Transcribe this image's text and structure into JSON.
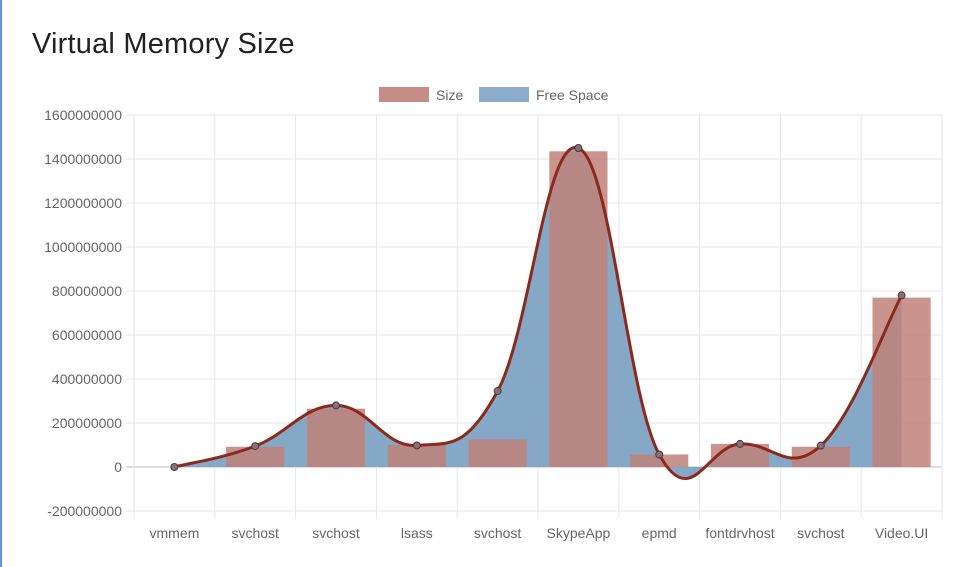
{
  "title": "Virtual Memory Size",
  "chart_data": {
    "type": "bar",
    "title": "Virtual Memory Size",
    "categories": [
      "vmmem",
      "svchost",
      "svchost",
      "lsass",
      "svchost",
      "SkypeApp",
      "epmd",
      "fontdrvhost",
      "svchost",
      "Video.UI"
    ],
    "series": [
      {
        "name": "Size",
        "type": "bar",
        "color": "#c0817a",
        "values": [
          0,
          92000000,
          265000000,
          100000000,
          125000000,
          1435000000,
          57000000,
          105000000,
          92000000,
          770000000
        ]
      },
      {
        "name": "Free Space",
        "type": "area",
        "color": "#7fa3c4",
        "line_color": "#8b2a1c",
        "values": [
          0,
          95000000,
          280000000,
          98000000,
          345000000,
          1450000000,
          57000000,
          105000000,
          97000000,
          780000000
        ]
      }
    ],
    "ylim": [
      -200000000,
      1600000000
    ],
    "yticks": [
      -200000000,
      0,
      200000000,
      400000000,
      600000000,
      800000000,
      1000000000,
      1200000000,
      1400000000,
      1600000000
    ],
    "grid": true,
    "legend": "top-center"
  }
}
